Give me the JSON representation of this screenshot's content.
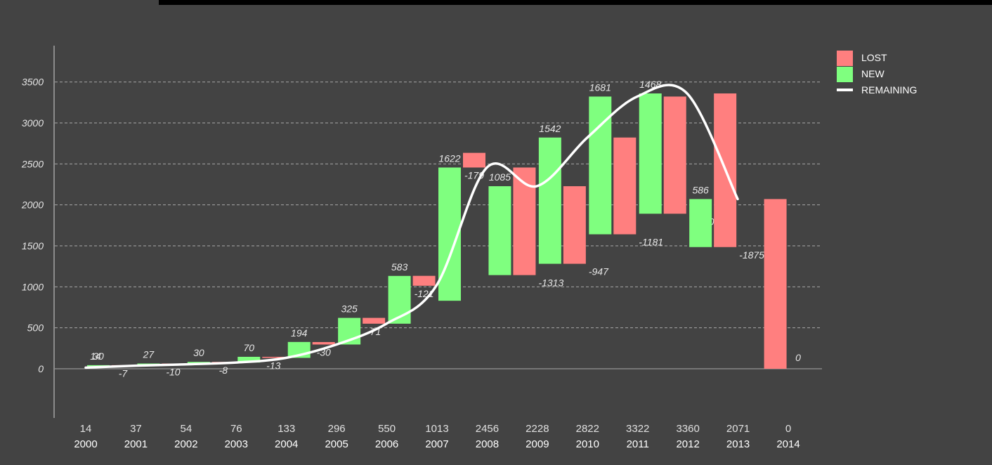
{
  "chart_data": {
    "type": "bar",
    "title": "",
    "xlabel": "",
    "ylabel": "",
    "ylim": [
      -600,
      3950
    ],
    "yticks": [
      0,
      500,
      1000,
      1500,
      2000,
      2500,
      3000,
      3500
    ],
    "grid": true,
    "legend_position": "top-right",
    "years": [
      "2000",
      "2001",
      "2002",
      "2003",
      "2004",
      "2005",
      "2006",
      "2007",
      "2008",
      "2009",
      "2010",
      "2011",
      "2012",
      "2013",
      "2014"
    ],
    "totals": [
      14,
      37,
      54,
      76,
      133,
      296,
      550,
      1013,
      2456,
      2228,
      2822,
      3322,
      3360,
      2071,
      0
    ],
    "series": [
      {
        "name": "LOST",
        "color": "#ff7f7f"
      },
      {
        "name": "NEW",
        "color": "#7fff7f"
      },
      {
        "name": "REMAINING",
        "color": "#ffffff"
      }
    ],
    "remaining_labels": [
      "14",
      "",
      "",
      "",
      "",
      "",
      "",
      "",
      "1622",
      "1085",
      "1542",
      "1681",
      "1468",
      "586",
      "0"
    ],
    "bars": [
      {
        "type": "new",
        "year_index": 0,
        "bottom": 14,
        "top": 44,
        "label": "30",
        "label_pos": "above"
      },
      {
        "type": "lost",
        "year_index": 0,
        "bottom": 37,
        "top": 44,
        "label": "-7",
        "label_pos": "below"
      },
      {
        "type": "new",
        "year_index": 1,
        "bottom": 37,
        "top": 64,
        "label": "27",
        "label_pos": "above"
      },
      {
        "type": "lost",
        "year_index": 1,
        "bottom": 54,
        "top": 64,
        "label": "-10",
        "label_pos": "below"
      },
      {
        "type": "new",
        "year_index": 2,
        "bottom": 54,
        "top": 84,
        "label": "30",
        "label_pos": "above"
      },
      {
        "type": "lost",
        "year_index": 2,
        "bottom": 76,
        "top": 84,
        "label": "-8",
        "label_pos": "below"
      },
      {
        "type": "new",
        "year_index": 3,
        "bottom": 76,
        "top": 146,
        "label": "70",
        "label_pos": "above"
      },
      {
        "type": "lost",
        "year_index": 3,
        "bottom": 133,
        "top": 146,
        "label": "-13",
        "label_pos": "below"
      },
      {
        "type": "new",
        "year_index": 4,
        "bottom": 133,
        "top": 327,
        "label": "194",
        "label_pos": "above"
      },
      {
        "type": "lost",
        "year_index": 4,
        "bottom": 296,
        "top": 326,
        "label": "-30",
        "label_pos": "below"
      },
      {
        "type": "new",
        "year_index": 5,
        "bottom": 296,
        "top": 621,
        "label": "325",
        "label_pos": "above"
      },
      {
        "type": "lost",
        "year_index": 5,
        "bottom": 550,
        "top": 621,
        "label": "-71",
        "label_pos": "below"
      },
      {
        "type": "new",
        "year_index": 6,
        "bottom": 550,
        "top": 1133,
        "label": "583",
        "label_pos": "above"
      },
      {
        "type": "lost",
        "year_index": 6,
        "bottom": 1013,
        "top": 1134,
        "label": "-121",
        "label_pos": "below"
      },
      {
        "type": "new",
        "year_index": 7,
        "bottom": 1013,
        "top": 1013,
        "label": "",
        "label_pos": "above"
      },
      {
        "type": "lost",
        "year_index": 7,
        "bottom": 2456,
        "top": 2635,
        "label": "-179",
        "label_pos": "below"
      }
    ]
  }
}
